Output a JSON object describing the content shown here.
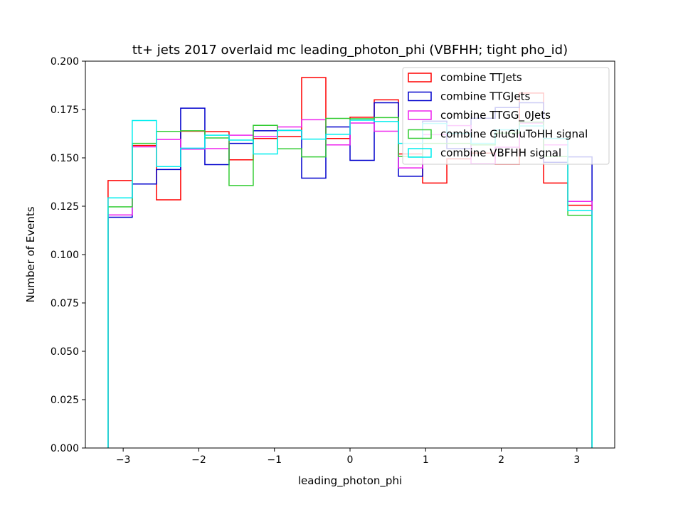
{
  "chart_data": {
    "type": "histogram-step",
    "title": "tt+ jets 2017 overlaid mc leading_photon_phi (VBFHH; tight pho_id)",
    "xlabel": "leading_photon_phi",
    "ylabel": "Number of Events",
    "xlim": [
      -3.5,
      3.5
    ],
    "ylim": [
      0,
      0.2
    ],
    "xticks": [
      -3,
      -2,
      -1,
      0,
      1,
      2,
      3
    ],
    "xtick_labels": [
      "−3",
      "−2",
      "−1",
      "0",
      "1",
      "2",
      "3"
    ],
    "yticks": [
      0.0,
      0.025,
      0.05,
      0.075,
      0.1,
      0.125,
      0.15,
      0.175,
      0.2
    ],
    "ytick_labels": [
      "0.000",
      "0.025",
      "0.050",
      "0.075",
      "0.100",
      "0.125",
      "0.150",
      "0.175",
      "0.200"
    ],
    "bin_edges": [
      -3.2,
      -2.88,
      -2.56,
      -2.24,
      -1.92,
      -1.6,
      -1.28,
      -0.96,
      -0.64,
      -0.32,
      0.0,
      0.32,
      0.64,
      0.96,
      1.28,
      1.6,
      1.92,
      2.24,
      2.56,
      2.88,
      3.2
    ],
    "legend_position": "top-right",
    "series": [
      {
        "name": "combine TTJets",
        "color": "#ff0000",
        "values": [
          0.1383,
          0.1564,
          0.1283,
          0.1638,
          0.1635,
          0.149,
          0.16,
          0.161,
          0.1915,
          0.16,
          0.171,
          0.18,
          0.152,
          0.137,
          0.1495,
          0.1525,
          0.1467,
          0.1835,
          0.137,
          0.1255
        ]
      },
      {
        "name": "combine TTGJets",
        "color": "#0000cc",
        "values": [
          0.1193,
          0.1365,
          0.144,
          0.1757,
          0.1465,
          0.1575,
          0.164,
          0.1642,
          0.1395,
          0.166,
          0.1487,
          0.1785,
          0.1405,
          0.169,
          0.1548,
          0.1705,
          0.176,
          0.1785,
          0.1477,
          0.1505
        ]
      },
      {
        "name": "combine TTGG_0Jets",
        "color": "#ee22ee",
        "values": [
          0.1205,
          0.1557,
          0.1595,
          0.1545,
          0.1548,
          0.1617,
          0.161,
          0.166,
          0.1697,
          0.1567,
          0.168,
          0.1638,
          0.1448,
          0.162,
          0.1667,
          0.147,
          0.1555,
          0.168,
          0.1567,
          0.1275
        ]
      },
      {
        "name": "combine GluGluToHH signal",
        "color": "#33cc33",
        "values": [
          0.1247,
          0.1575,
          0.1637,
          0.164,
          0.1603,
          0.1357,
          0.1668,
          0.1547,
          0.1505,
          0.1704,
          0.1702,
          0.1708,
          0.1507,
          0.1575,
          0.1575,
          0.1567,
          0.1628,
          0.1685,
          0.1507,
          0.1203
        ]
      },
      {
        "name": "combine VBFHH signal",
        "color": "#00eeee",
        "values": [
          0.1293,
          0.1693,
          0.1455,
          0.155,
          0.1617,
          0.1592,
          0.152,
          0.1642,
          0.1597,
          0.1622,
          0.1695,
          0.1688,
          0.1575,
          0.1678,
          0.1627,
          0.1575,
          0.1645,
          0.1665,
          0.16,
          0.1227
        ]
      }
    ]
  }
}
